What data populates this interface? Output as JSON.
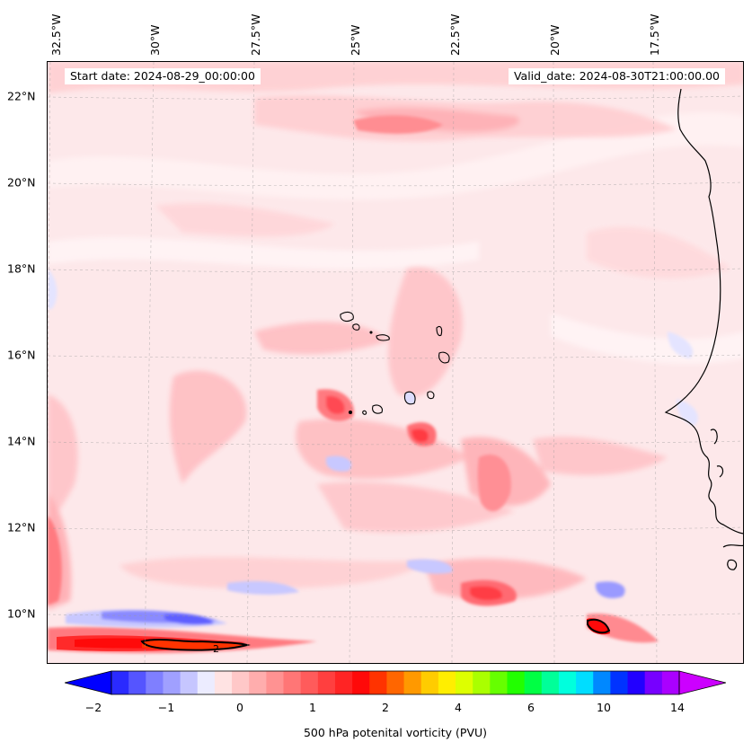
{
  "map": {
    "start_date": "Start date: 2024-08-29_00:00:00",
    "valid_date": "Valid_date: 2024-08-30T21:00:00.00",
    "longitude_labels": [
      "32.5°W",
      "30°W",
      "27.5°W",
      "25°W",
      "22.5°W",
      "20°W",
      "17.5°W"
    ],
    "latitude_labels": [
      "22°N",
      "20°N",
      "18°N",
      "16°N",
      "14°N",
      "12°N",
      "10°N"
    ],
    "contour_label": "2",
    "background_color": "#fde8ea"
  },
  "colorbar": {
    "tick_labels": [
      "−2",
      "−1",
      "0",
      "1",
      "2",
      "4",
      "6",
      "10",
      "14"
    ],
    "caption": "500 hPa potenital vorticity (PVU)",
    "colors": [
      "#0000ff",
      "#2a2aff",
      "#5555ff",
      "#7f7fff",
      "#a0a0ff",
      "#c6c6ff",
      "#ececff",
      "#ffe3e3",
      "#ffc8c8",
      "#ffadad",
      "#ff9292",
      "#ff7676",
      "#ff5b5b",
      "#ff3f3f",
      "#ff2424",
      "#ff0909",
      "#ff3300",
      "#ff6600",
      "#ff9900",
      "#ffcc00",
      "#ffee00",
      "#ddff00",
      "#aaff00",
      "#66ff00",
      "#22ff00",
      "#00ff44",
      "#00ff99",
      "#00ffdd",
      "#00ddff",
      "#0088ff",
      "#0033ff",
      "#2200ff",
      "#7700ff",
      "#aa00ff",
      "#cc00ff"
    ]
  }
}
